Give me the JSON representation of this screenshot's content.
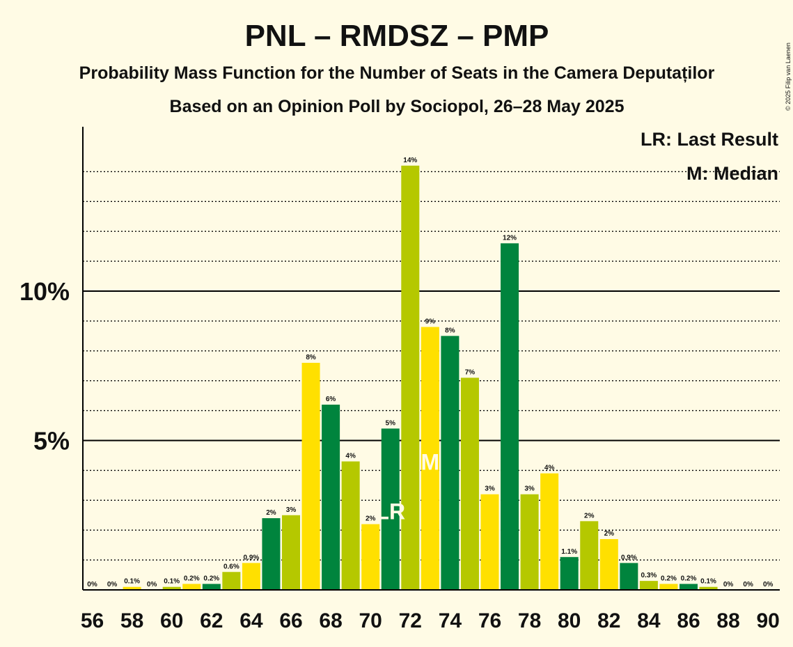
{
  "chart_data": {
    "type": "bar",
    "title": "PNL – RMDSZ – PMP",
    "subtitle": "Probability Mass Function for the Number of Seats in the Camera Deputaților",
    "subtitle2": "Based on an Opinion Poll by Sociopol, 26–28 May 2025",
    "copyright": "© 2025 Filip van Laenen",
    "legend": {
      "last_result": "LR: Last Result",
      "median": "M: Median"
    },
    "y_ticks": [
      {
        "value": 5,
        "label": "5%"
      },
      {
        "value": 10,
        "label": "10%"
      }
    ],
    "ylim": [
      0,
      15
    ],
    "grid": true,
    "colors": {
      "background": "#FFFBE5",
      "dark_green": "#00843D",
      "yellow_green": "#B5C800",
      "yellow": "#FFE000",
      "axis": "#000000"
    },
    "bar_color_cycle": [
      "dark_green",
      "yellow_green",
      "yellow"
    ],
    "categories": [
      56,
      57,
      58,
      59,
      60,
      61,
      62,
      63,
      64,
      65,
      66,
      67,
      68,
      69,
      70,
      71,
      72,
      73,
      74,
      75,
      76,
      77,
      78,
      79,
      80,
      81,
      82,
      83,
      84,
      85,
      86,
      87,
      88,
      89,
      90
    ],
    "values": [
      0,
      0,
      0.1,
      0,
      0.1,
      0.2,
      0.2,
      0.6,
      0.9,
      2.4,
      2.5,
      7.6,
      6.2,
      4.3,
      2.2,
      5.4,
      14.2,
      8.8,
      8.5,
      7.1,
      3.2,
      11.6,
      3.2,
      3.9,
      1.1,
      2.3,
      1.7,
      0.9,
      0.3,
      0.2,
      0.2,
      0.1,
      0,
      0,
      0
    ],
    "value_labels": [
      "0%",
      "0%",
      "0.1%",
      "0%",
      "0.1%",
      "0.2%",
      "0.2%",
      "0.6%",
      "0.9%",
      "2%",
      "3%",
      "8%",
      "6%",
      "4%",
      "2%",
      "5%",
      "14%",
      "9%",
      "8%",
      "7%",
      "3%",
      "12%",
      "3%",
      "4%",
      "1.1%",
      "2%",
      "2%",
      "0.9%",
      "0.3%",
      "0.2%",
      "0.2%",
      "0.1%",
      "0%",
      "0%",
      "0%"
    ],
    "x_tick_labels": [
      "56",
      "58",
      "60",
      "62",
      "64",
      "66",
      "68",
      "70",
      "72",
      "74",
      "76",
      "78",
      "80",
      "82",
      "84",
      "86",
      "88",
      "90"
    ],
    "last_result_seat": 71,
    "last_result_label": "LR",
    "median_seat": 73,
    "median_label": "M"
  }
}
